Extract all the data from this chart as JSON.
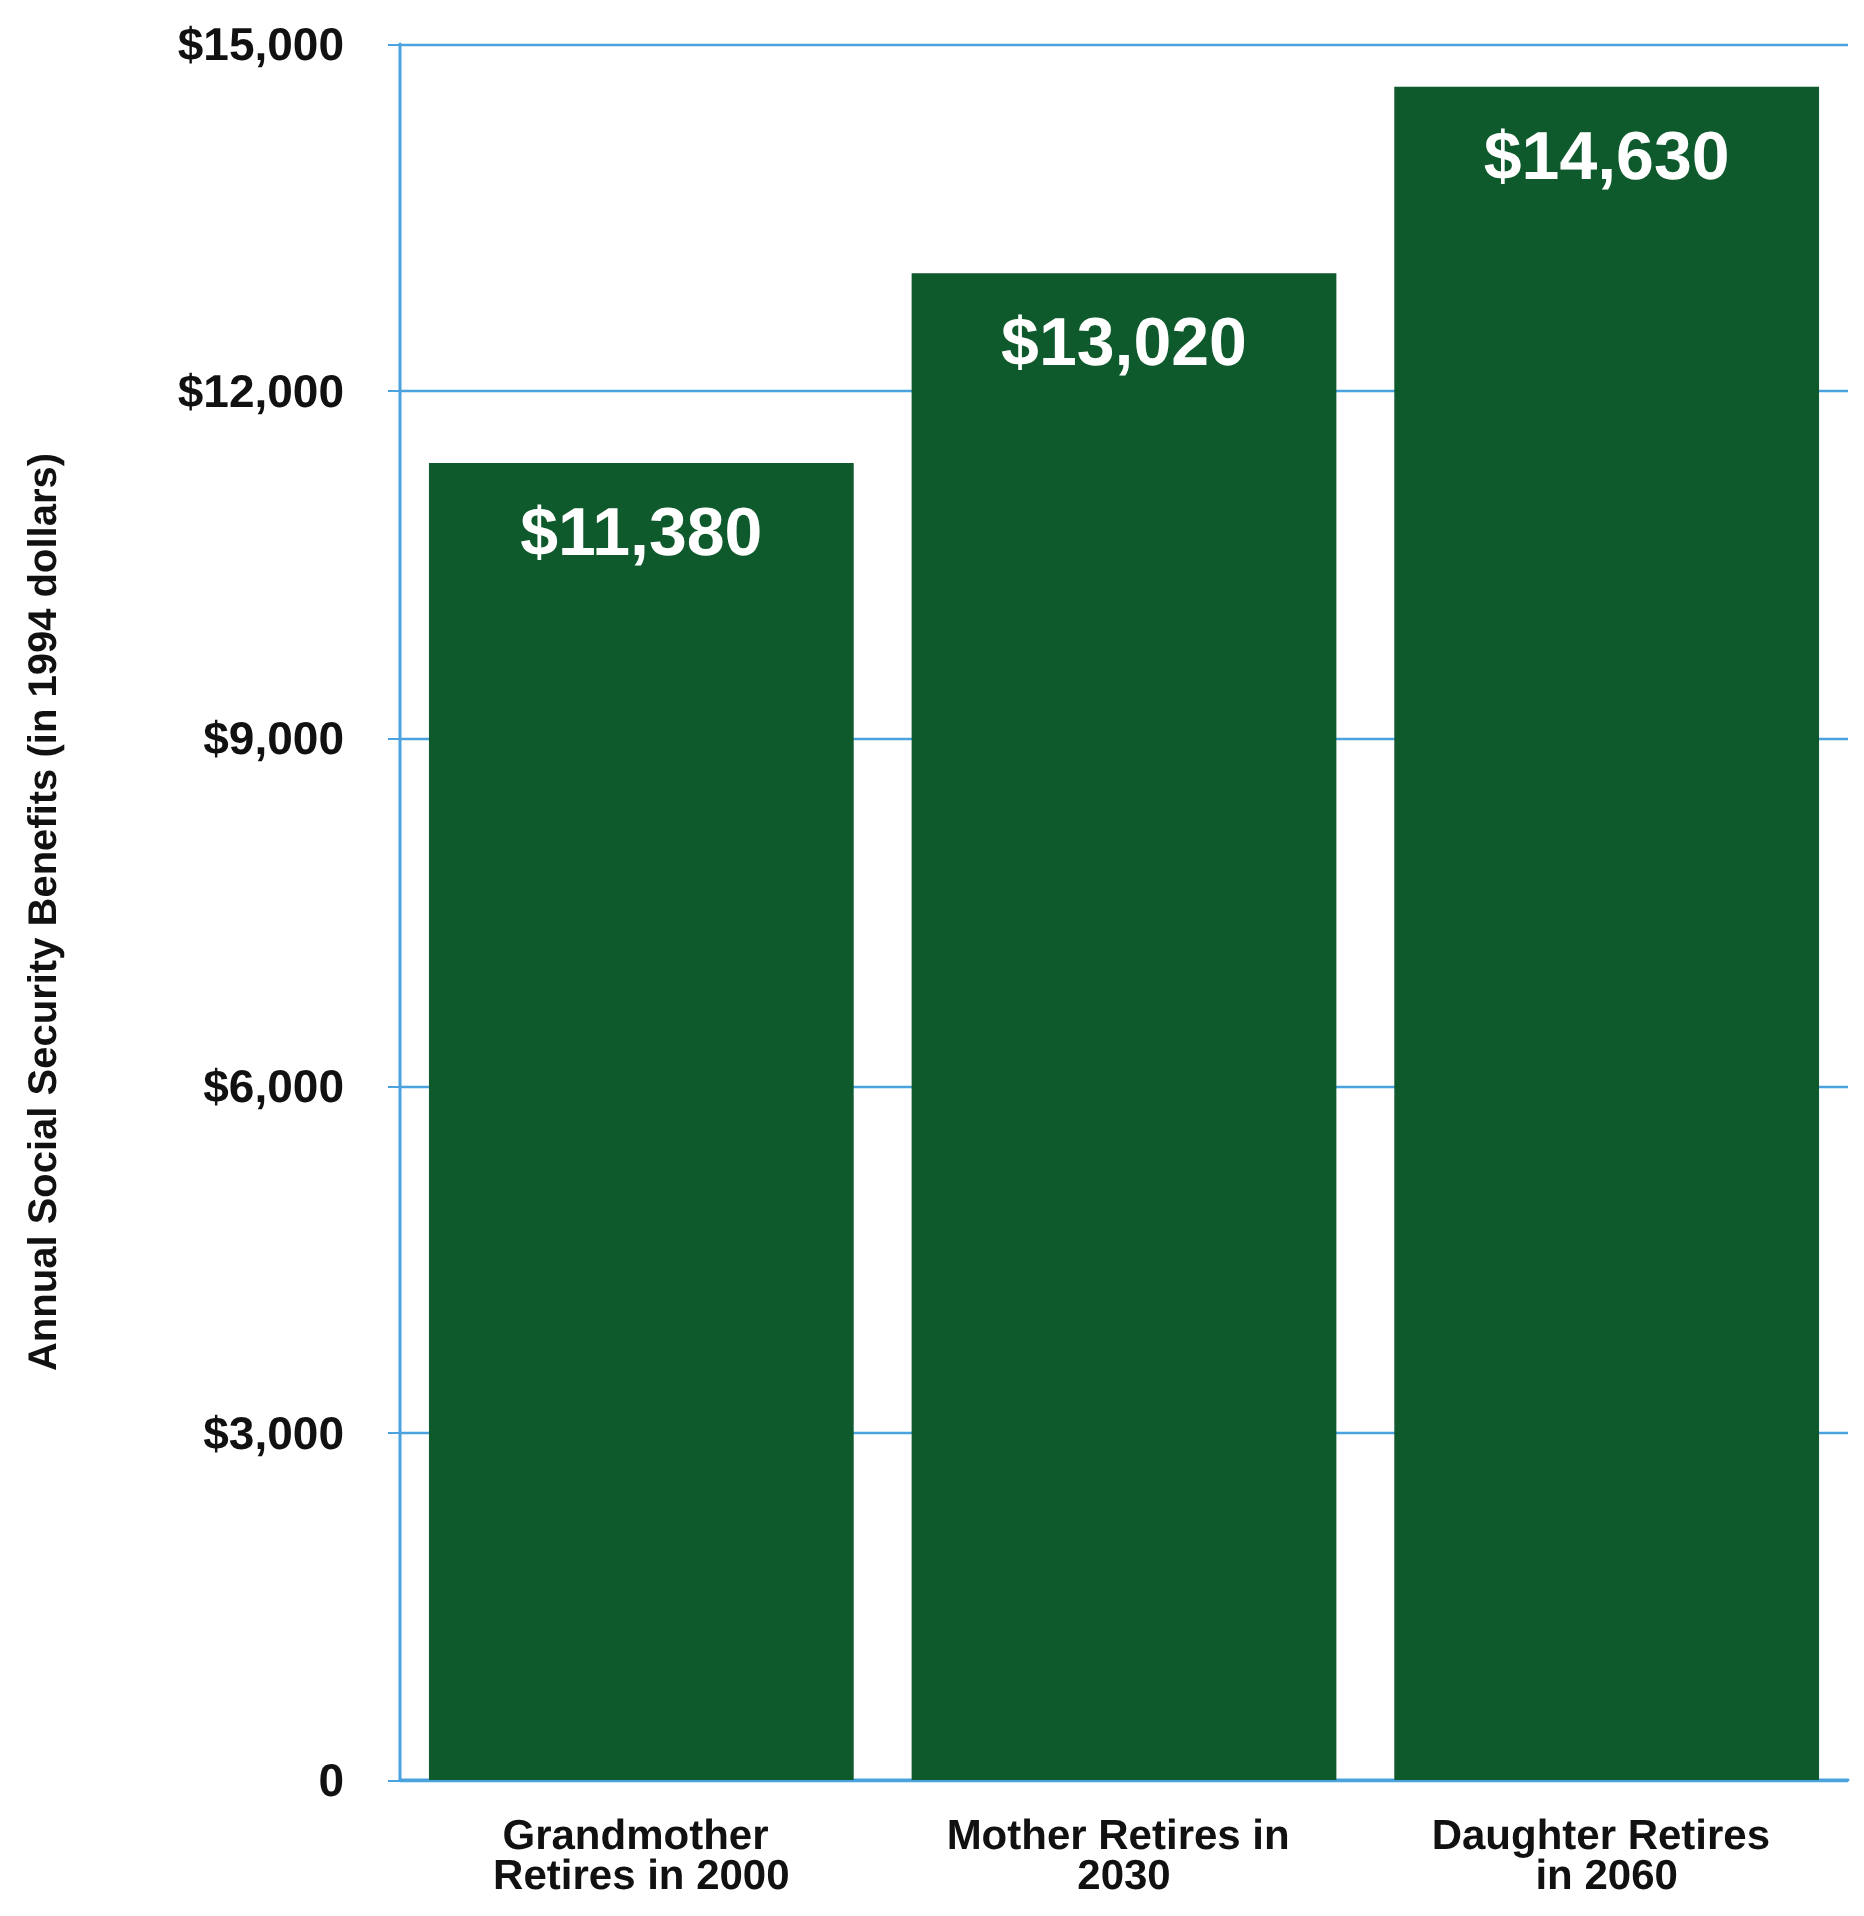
{
  "chart_data": {
    "type": "bar",
    "ylabel": "Annual Social Security Benefits (in 1994 dollars)",
    "categories": [
      "Grandmother Retires in 2000",
      "Mother Retires in 2030",
      "Daughter Retires in 2060"
    ],
    "values": [
      11380,
      13020,
      14630
    ],
    "color": "#0e5a2c",
    "value_labels": [
      "$11,380",
      "$13,020",
      "$14,630"
    ],
    "ylim": [
      0,
      15000
    ],
    "yticks": [
      0,
      {
        "value": 3000,
        "label": "$3,000"
      },
      {
        "value": 6000,
        "label": "$6,000"
      },
      {
        "value": 9000,
        "label": "$9,000"
      },
      {
        "value": 12000,
        "label": "$12,000"
      },
      {
        "value": 15000,
        "label": "$15,000"
      }
    ],
    "grid": "y"
  }
}
